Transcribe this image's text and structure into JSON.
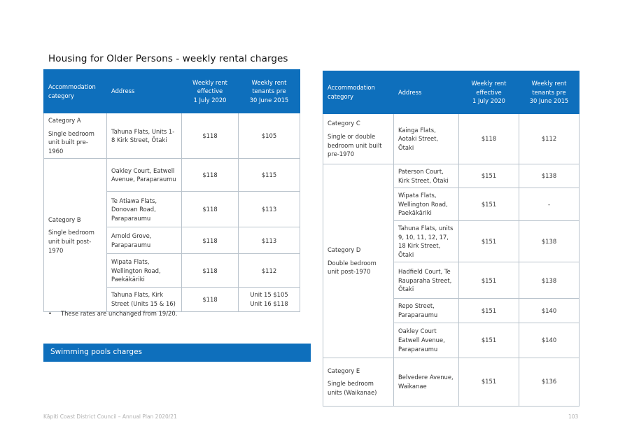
{
  "title": "Housing for Older Persons - weekly rental charges",
  "headers": {
    "category": "Accommodation category",
    "address": "Address",
    "rent_now": [
      "Weekly rent",
      "effective",
      "1 July 2020"
    ],
    "rent_pre": [
      "Weekly rent",
      "tenants pre",
      "30 June 2015"
    ]
  },
  "left_table": {
    "groups": [
      {
        "name": "Category A",
        "desc": "Single bedroom unit built pre-1960",
        "rows": [
          {
            "address": "Tahuna Flats, Units 1-8 Kirk Street, Ōtaki",
            "rent": "$118",
            "pre": [
              "$105"
            ]
          }
        ]
      },
      {
        "name": "Category B",
        "desc": "Single bedroom unit built post-1970",
        "rows": [
          {
            "address": "Oakley Court, Eatwell Avenue, Paraparaumu",
            "rent": "$118",
            "pre": [
              "$115"
            ]
          },
          {
            "address": "Te Atiawa Flats, Donovan Road, Paraparaumu",
            "rent": "$118",
            "pre": [
              "$113"
            ]
          },
          {
            "address": "Arnold Grove, Paraparaumu",
            "rent": "$118",
            "pre": [
              "$113"
            ]
          },
          {
            "address": "Wipata Flats, Wellington Road, Paekākāriki",
            "rent": "$118",
            "pre": [
              "$112"
            ]
          },
          {
            "address": "Tahuna Flats, Kirk Street (Units 15 & 16)",
            "rent": "$118",
            "pre": [
              "Unit 15 $105",
              "Unit 16 $118"
            ]
          }
        ]
      }
    ]
  },
  "right_table": {
    "groups": [
      {
        "name": "Category C",
        "desc": "Single or double bedroom unit built pre-1970",
        "rows": [
          {
            "address": "Kainga Flats, Aotaki Street, Ōtaki",
            "rent": "$118",
            "pre": [
              "$112"
            ]
          }
        ]
      },
      {
        "name": "Category D",
        "desc": "Double bedroom unit post-1970",
        "rows": [
          {
            "address": "Paterson Court, Kirk Street, Ōtaki",
            "rent": "$151",
            "pre": [
              "$138"
            ]
          },
          {
            "address": "Wipata Flats, Wellington Road, Paekākāriki",
            "rent": "$151",
            "pre": [
              "-"
            ]
          },
          {
            "address": "Tahuna Flats, units 9, 10, 11, 12, 17, 18 Kirk Street, Ōtaki",
            "rent": "$151",
            "pre": [
              "$138"
            ]
          },
          {
            "address": "Hadfield Court, Te Rauparaha Street, Ōtaki",
            "rent": "$151",
            "pre": [
              "$138"
            ]
          },
          {
            "address": "Repo Street, Paraparaumu",
            "rent": "$151",
            "pre": [
              "$140"
            ]
          },
          {
            "address": "Oakley Court Eatwell Avenue, Paraparaumu",
            "rent": "$151",
            "pre": [
              "$140"
            ]
          }
        ]
      },
      {
        "name": "Category E",
        "desc": "Single bedroom units (Waikanae)",
        "rows": [
          {
            "address": "Belvedere Avenue, Waikanae",
            "rent": "$151",
            "pre": [
              "$136"
            ]
          }
        ]
      }
    ]
  },
  "note": {
    "bullet": "•",
    "text": "These rates are unchanged from 19/20."
  },
  "pools_heading": "Swimming pools charges",
  "footer": {
    "left": "Kāpiti Coast District Council – Annual Plan 2020/21",
    "page": "103"
  },
  "colors": {
    "header_blue": "#0e6fbc",
    "border": "#b9c3cc"
  }
}
